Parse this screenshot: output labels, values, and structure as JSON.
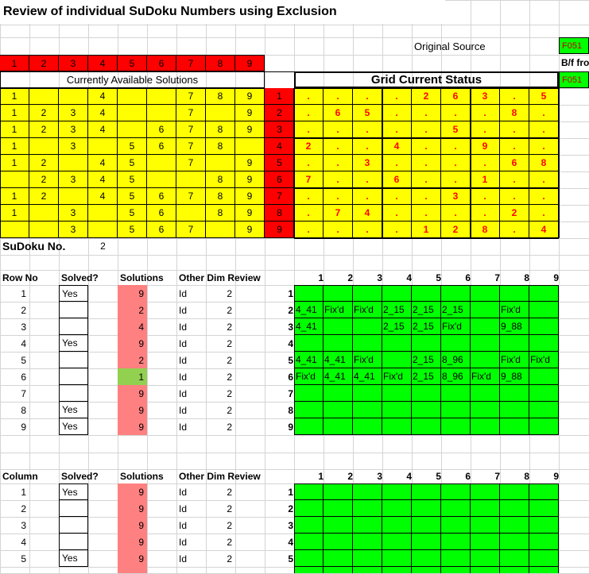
{
  "title": "Review of individual SuDoku Numbers using Exclusion",
  "original_source_label": "Original Source",
  "original_source_value": "F051",
  "bf_label": "B/f fro",
  "bf_value": "F051",
  "digit_header": [
    "1",
    "2",
    "3",
    "4",
    "5",
    "6",
    "7",
    "8",
    "9"
  ],
  "available_title": "Currently Available Solutions",
  "grid_title": "Grid Current Status",
  "available": [
    [
      "1",
      "",
      "",
      "4",
      "",
      "",
      "7",
      "8",
      "9"
    ],
    [
      "1",
      "2",
      "3",
      "4",
      "",
      "",
      "7",
      "",
      "9"
    ],
    [
      "1",
      "2",
      "3",
      "4",
      "",
      "6",
      "7",
      "8",
      "9"
    ],
    [
      "1",
      "",
      "3",
      "",
      "5",
      "6",
      "7",
      "8",
      ""
    ],
    [
      "1",
      "2",
      "",
      "4",
      "5",
      "",
      "7",
      "",
      "9"
    ],
    [
      "",
      "2",
      "3",
      "4",
      "5",
      "",
      "",
      "8",
      "9"
    ],
    [
      "1",
      "2",
      "",
      "4",
      "5",
      "6",
      "7",
      "8",
      "9"
    ],
    [
      "1",
      "",
      "3",
      "",
      "5",
      "6",
      "",
      "8",
      "9"
    ],
    [
      "",
      "",
      "3",
      "",
      "5",
      "6",
      "7",
      "",
      "9"
    ]
  ],
  "row_index": [
    "1",
    "2",
    "3",
    "4",
    "5",
    "6",
    "7",
    "8",
    "9"
  ],
  "grid": [
    [
      ".",
      ".",
      ".",
      ".",
      "2",
      "6",
      "3",
      ".",
      "5"
    ],
    [
      ".",
      "6",
      "5",
      ".",
      ".",
      ".",
      ".",
      "8",
      "."
    ],
    [
      ".",
      ".",
      ".",
      ".",
      ".",
      "5",
      ".",
      ".",
      "."
    ],
    [
      "2",
      ".",
      ".",
      "4",
      ".",
      ".",
      "9",
      ".",
      "."
    ],
    [
      ".",
      ".",
      "3",
      ".",
      ".",
      ".",
      ".",
      "6",
      "8"
    ],
    [
      "7",
      ".",
      ".",
      "6",
      ".",
      ".",
      "1",
      ".",
      "."
    ],
    [
      ".",
      ".",
      ".",
      ".",
      ".",
      "3",
      ".",
      ".",
      "."
    ],
    [
      ".",
      "7",
      "4",
      ".",
      ".",
      ".",
      ".",
      "2",
      "."
    ],
    [
      ".",
      ".",
      ".",
      ".",
      "1",
      "2",
      "8",
      ".",
      "4"
    ]
  ],
  "sudoku_label": "SuDoku No.",
  "sudoku_no": "2",
  "row_section": {
    "headers": [
      "Row No",
      "Solved?",
      "Solutions",
      "Other Dim Review"
    ],
    "grid_headers": [
      "1",
      "2",
      "3",
      "4",
      "5",
      "6",
      "7",
      "8",
      "9"
    ],
    "rows": [
      {
        "no": "1",
        "solved": "Yes",
        "solutions": "9",
        "other": "Id",
        "review": "2",
        "solcolor": "pink"
      },
      {
        "no": "2",
        "solved": "",
        "solutions": "2",
        "other": "Id",
        "review": "2",
        "solcolor": "pink"
      },
      {
        "no": "3",
        "solved": "",
        "solutions": "4",
        "other": "Id",
        "review": "2",
        "solcolor": "pink"
      },
      {
        "no": "4",
        "solved": "Yes",
        "solutions": "9",
        "other": "Id",
        "review": "2",
        "solcolor": "pink"
      },
      {
        "no": "5",
        "solved": "",
        "solutions": "2",
        "other": "Id",
        "review": "2",
        "solcolor": "pink"
      },
      {
        "no": "6",
        "solved": "",
        "solutions": "1",
        "other": "Id",
        "review": "2",
        "solcolor": "lgrn"
      },
      {
        "no": "7",
        "solved": "",
        "solutions": "9",
        "other": "Id",
        "review": "2",
        "solcolor": "pink"
      },
      {
        "no": "8",
        "solved": "Yes",
        "solutions": "9",
        "other": "Id",
        "review": "2",
        "solcolor": "pink"
      },
      {
        "no": "9",
        "solved": "Yes",
        "solutions": "9",
        "other": "Id",
        "review": "2",
        "solcolor": "pink"
      }
    ],
    "grid": [
      [
        "",
        "",
        "",
        "",
        "",
        "",
        "",
        "",
        ""
      ],
      [
        "4_41",
        "Fix'd",
        "Fix'd",
        "2_15",
        "2_15",
        "2_15",
        "",
        "Fix'd",
        ""
      ],
      [
        "4_41",
        "",
        "",
        "2_15",
        "2_15",
        "Fix'd",
        "",
        "9_88",
        ""
      ],
      [
        "",
        "",
        "",
        "",
        "",
        "",
        "",
        "",
        ""
      ],
      [
        "4_41",
        "4_41",
        "Fix'd",
        "",
        "2_15",
        "8_96",
        "",
        "Fix'd",
        "Fix'd"
      ],
      [
        "Fix'd",
        "4_41",
        "4_41",
        "Fix'd",
        "2_15",
        "8_96",
        "Fix'd",
        "9_88",
        ""
      ],
      [
        "",
        "",
        "",
        "",
        "",
        "",
        "",
        "",
        ""
      ],
      [
        "",
        "",
        "",
        "",
        "",
        "",
        "",
        "",
        ""
      ],
      [
        "",
        "",
        "",
        "",
        "",
        "",
        "",
        "",
        ""
      ]
    ]
  },
  "col_section": {
    "headers": [
      "Column",
      "Solved?",
      "Solutions",
      "Other Dim Review"
    ],
    "grid_headers": [
      "1",
      "2",
      "3",
      "4",
      "5",
      "6",
      "7",
      "8",
      "9"
    ],
    "rows": [
      {
        "no": "1",
        "solved": "Yes",
        "solutions": "9",
        "other": "Id",
        "review": "2",
        "solcolor": "pink"
      },
      {
        "no": "2",
        "solved": "",
        "solutions": "9",
        "other": "Id",
        "review": "2",
        "solcolor": "pink"
      },
      {
        "no": "3",
        "solved": "",
        "solutions": "9",
        "other": "Id",
        "review": "2",
        "solcolor": "pink"
      },
      {
        "no": "4",
        "solved": "",
        "solutions": "9",
        "other": "Id",
        "review": "2",
        "solcolor": "pink"
      },
      {
        "no": "5",
        "solved": "Yes",
        "solutions": "9",
        "other": "Id",
        "review": "2",
        "solcolor": "pink"
      }
    ]
  }
}
